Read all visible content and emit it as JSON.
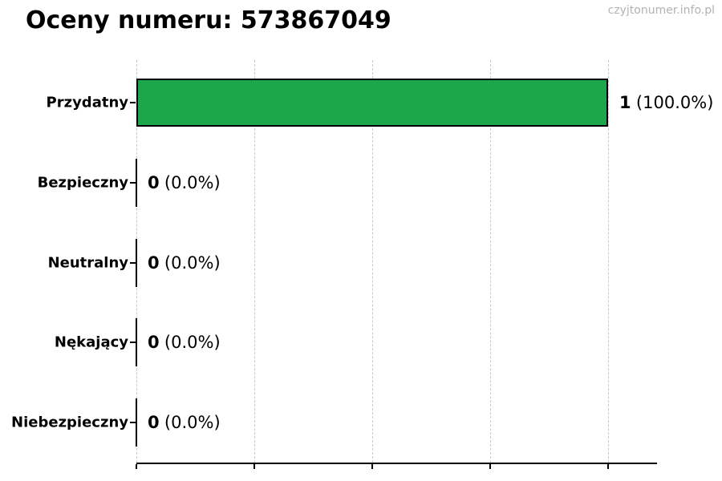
{
  "watermark": {
    "text": "czyjtonumer.info.pl",
    "color": "#b3b3b3"
  },
  "chart_data": {
    "type": "bar",
    "orientation": "horizontal",
    "title": "Oceny numeru: 573867049",
    "categories": [
      "Przydatny",
      "Bezpieczny",
      "Neutralny",
      "Nękający",
      "Niebezpieczny"
    ],
    "values": [
      1,
      0,
      0,
      0,
      0
    ],
    "value_labels": [
      {
        "count": "1",
        "percent": "(100.0%)"
      },
      {
        "count": "0",
        "percent": "(0.0%)"
      },
      {
        "count": "0",
        "percent": "(0.0%)"
      },
      {
        "count": "0",
        "percent": "(0.0%)"
      },
      {
        "count": "0",
        "percent": "(0.0%)"
      }
    ],
    "xlabel": "",
    "ylabel": "",
    "xlim": [
      0,
      1.1
    ],
    "xticks": [
      0,
      0.25,
      0.5,
      0.75,
      1
    ],
    "xtick_labels": [],
    "grid": {
      "axis": "x",
      "style": "dashed",
      "color": "#c9c9c9"
    },
    "legend": "none",
    "colors": {
      "bar": "#1ea64d",
      "bar_edge": "#000000",
      "axis": "#000000",
      "text": "#000000"
    }
  }
}
